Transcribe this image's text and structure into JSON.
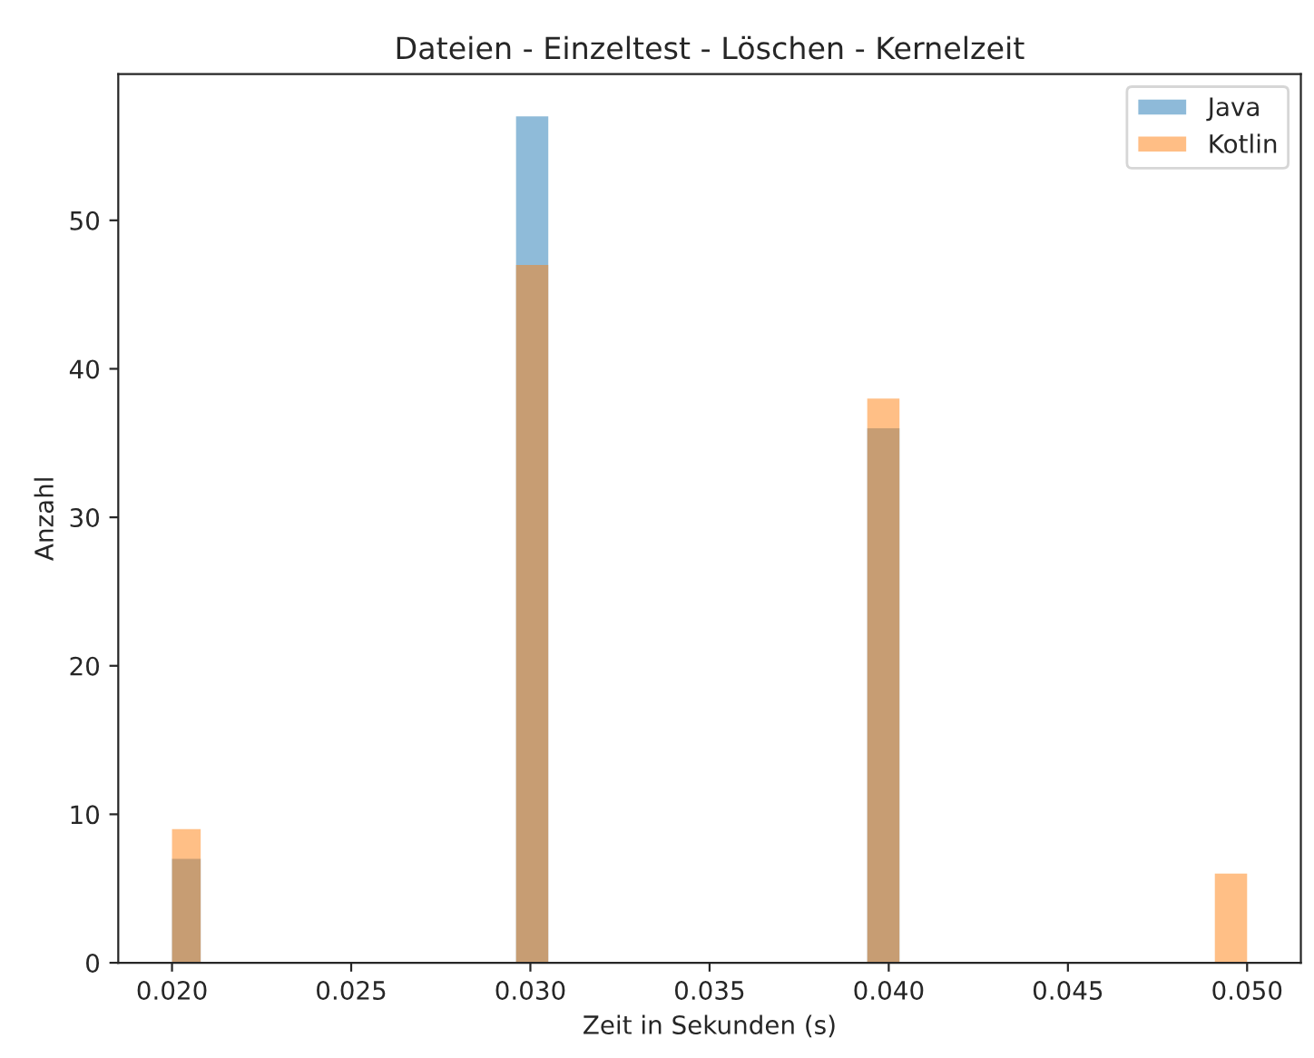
{
  "chart_data": {
    "type": "histogram",
    "title": "Dateien - Einzeltest - Löschen - Kernelzeit",
    "xlabel": "Zeit in Sekunden (s)",
    "ylabel": "Anzahl",
    "bins": [
      0.02,
      0.0208,
      0.0296,
      0.0305,
      0.0394,
      0.0403,
      0.0491,
      0.05
    ],
    "series": [
      {
        "name": "Java",
        "color": "#1f77b4",
        "values": [
          7,
          0,
          57,
          0,
          36,
          0,
          0
        ]
      },
      {
        "name": "Kotlin",
        "color": "#ff7f0e",
        "values": [
          9,
          0,
          47,
          0,
          38,
          0,
          6
        ]
      }
    ],
    "xlim": [
      0.0185,
      0.0515
    ],
    "xticks": [
      {
        "value": 0.02,
        "label": "0.020"
      },
      {
        "value": 0.025,
        "label": "0.025"
      },
      {
        "value": 0.03,
        "label": "0.030"
      },
      {
        "value": 0.035,
        "label": "0.035"
      },
      {
        "value": 0.04,
        "label": "0.040"
      },
      {
        "value": 0.045,
        "label": "0.045"
      },
      {
        "value": 0.05,
        "label": "0.050"
      }
    ],
    "ylim": [
      0,
      59.85
    ],
    "yticks": [
      0,
      10,
      20,
      30,
      40,
      50
    ],
    "legend": "top right",
    "grid": false
  }
}
